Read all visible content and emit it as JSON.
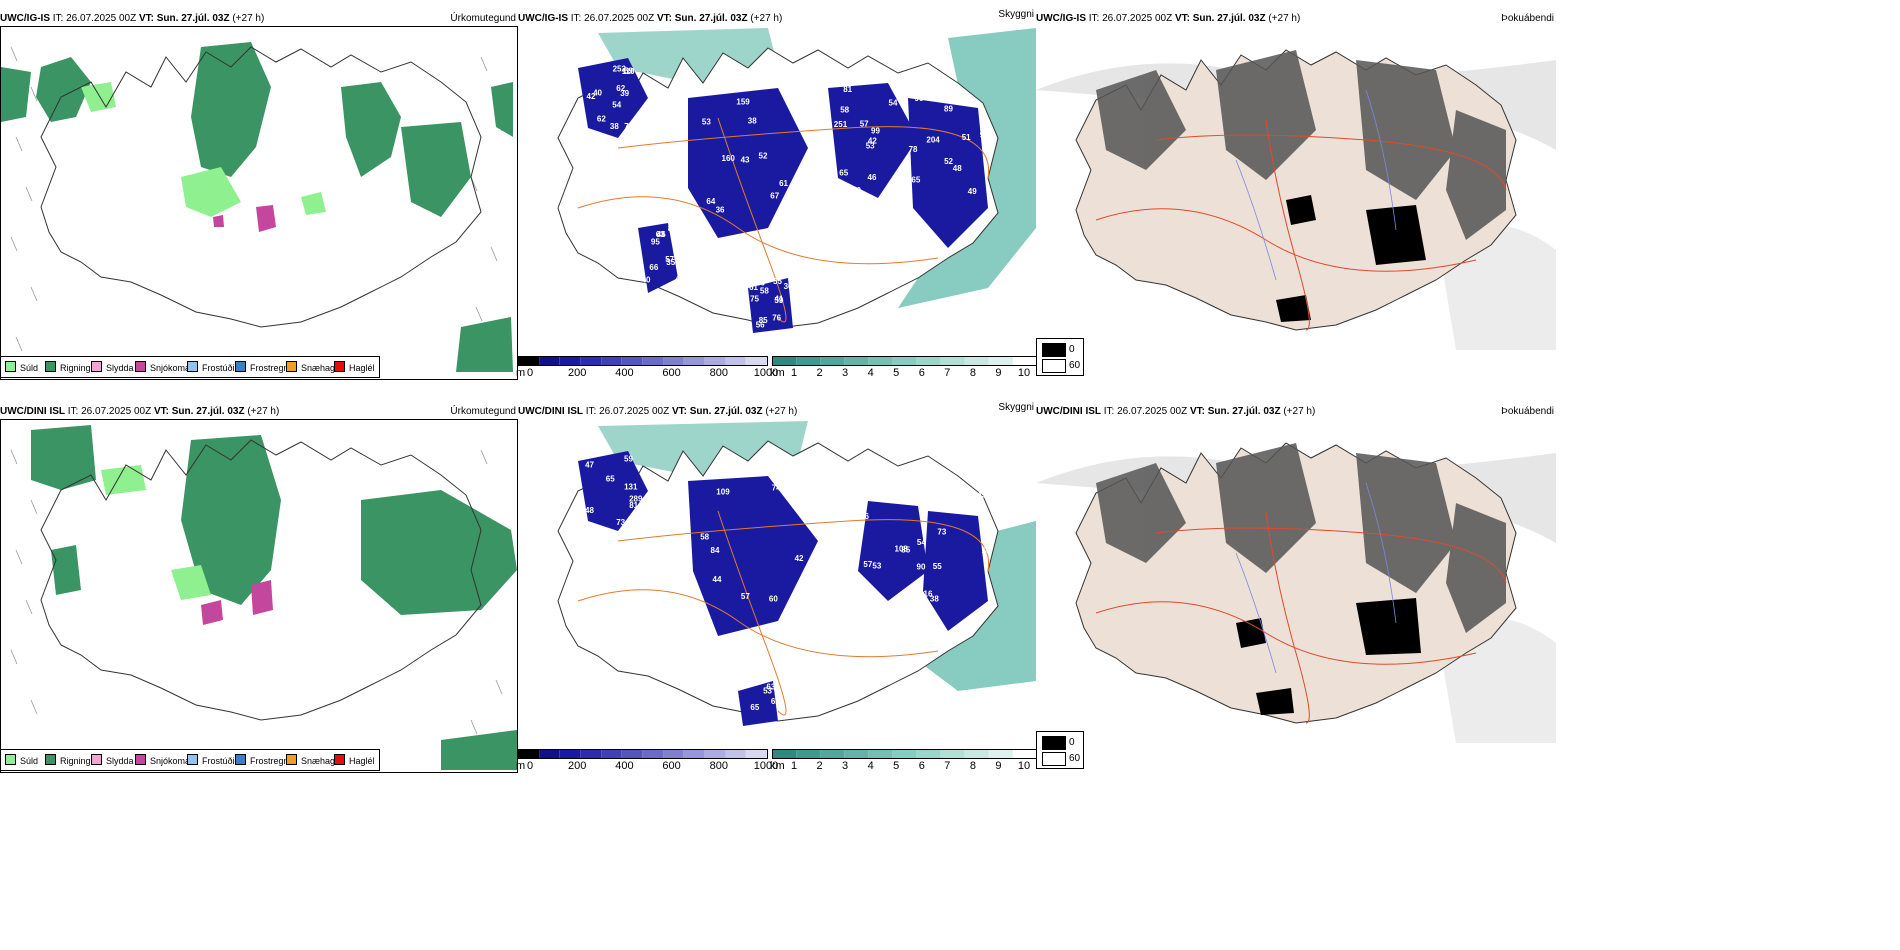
{
  "rows": [
    {
      "panels": [
        {
          "model": "UWC/IG-IS",
          "it_label": "IT:",
          "it_value": "26.07.2025 00Z",
          "vt_label": "VT:",
          "vt_value": "Sun. 27.júl. 03Z",
          "lead": "(+27 h)",
          "product": "Úrkomutegund"
        },
        {
          "model": "UWC/IG-IS",
          "it_label": "IT:",
          "it_value": "26.07.2025 00Z",
          "vt_label": "VT:",
          "vt_value": "Sun. 27.júl. 03Z",
          "lead": "(+27 h)",
          "product": "Skyggni",
          "labels": [
            "54",
            "53",
            "42",
            "52",
            "41",
            "66",
            "59",
            "38",
            "54",
            "48",
            "46",
            "45",
            "42",
            "49",
            "53",
            "51",
            "56",
            "63",
            "62",
            "64",
            "57",
            "48",
            "85",
            "46",
            "39",
            "61",
            "58",
            "89",
            "75",
            "57",
            "39",
            "43",
            "46",
            "52",
            "58",
            "89",
            "62",
            "66",
            "65",
            "49",
            "55",
            "95",
            "40",
            "67",
            "50",
            "78",
            "59",
            "40",
            "38",
            "52",
            "65",
            "94",
            "61",
            "35",
            "78",
            "36",
            "81",
            "90",
            "76",
            "40",
            "252",
            "160",
            "251",
            "204",
            "364",
            "484",
            "110",
            "159",
            "99"
          ]
        },
        {
          "model": "UWC/IG-IS",
          "it_label": "IT:",
          "it_value": "26.07.2025 00Z",
          "vt_label": "VT:",
          "vt_value": "Sun. 27.júl. 03Z",
          "lead": "(+27 h)",
          "product": "Þokuábendi"
        }
      ]
    },
    {
      "panels": [
        {
          "model": "UWC/DINI ISL",
          "it_label": "IT:",
          "it_value": "26.07.2025 00Z",
          "vt_label": "VT:",
          "vt_value": "Sun. 27.júl. 03Z",
          "lead": "(+27 h)",
          "product": "Úrkomutegund"
        },
        {
          "model": "UWC/DINI ISL",
          "it_label": "IT:",
          "it_value": "26.07.2025 00Z",
          "vt_label": "VT:",
          "vt_value": "Sun. 27.júl. 03Z",
          "lead": "(+27 h)",
          "product": "Skyggni",
          "labels": [
            "289",
            "42",
            "52",
            "50",
            "63",
            "72",
            "48",
            "74",
            "51",
            "40",
            "37",
            "37",
            "47",
            "54",
            "57",
            "50",
            "62",
            "47",
            "65",
            "44",
            "67",
            "49",
            "53",
            "74",
            "59",
            "109",
            "108",
            "90",
            "118",
            "65",
            "73",
            "60",
            "56",
            "55",
            "48",
            "51",
            "81",
            "84",
            "53",
            "116",
            "257",
            "66",
            "91",
            "57",
            "85",
            "38",
            "65",
            "56",
            "131",
            "58",
            "54",
            "73",
            "121",
            "48"
          ]
        },
        {
          "model": "UWC/DINI ISL",
          "it_label": "IT:",
          "it_value": "26.07.2025 00Z",
          "vt_label": "VT:",
          "vt_value": "Sun. 27.júl. 03Z",
          "lead": "(+27 h)",
          "product": "Þokuábendi"
        }
      ]
    }
  ],
  "precip_legend": [
    {
      "label": "Súld",
      "color": "#8ef08e"
    },
    {
      "label": "Rigning",
      "color": "#3a9463"
    },
    {
      "label": "Slydda",
      "color": "#f4a3d2"
    },
    {
      "label": "Snjókoma",
      "color": "#c4479e"
    },
    {
      "label": "Frostúði",
      "color": "#8fc4f0"
    },
    {
      "label": "Frostregn",
      "color": "#3a7ec4"
    },
    {
      "label": "Snæhagl",
      "color": "#f0a020"
    },
    {
      "label": "Haglél",
      "color": "#e01010"
    }
  ],
  "height_bar": {
    "unit": "m",
    "ticks": [
      "0",
      "200",
      "400",
      "600",
      "800",
      "1000"
    ],
    "colors": [
      "#000000",
      "#10108a",
      "#1a1aa0",
      "#2c2cb0",
      "#4040b8",
      "#5555c0",
      "#6a6ac8",
      "#8080d0",
      "#9696d8",
      "#acacdf",
      "#c2c2e8",
      "#d8d8f0"
    ]
  },
  "vis_bar": {
    "unit": "km",
    "ticks": [
      "1",
      "2",
      "3",
      "4",
      "5",
      "6",
      "7",
      "8",
      "9",
      "10"
    ],
    "colors": [
      "#2e8a80",
      "#3d9a8e",
      "#4fa89b",
      "#62b4a8",
      "#75c0b4",
      "#88cbc0",
      "#9dd5cb",
      "#b2dfd6",
      "#c8e9e2",
      "#ddf2ee",
      "#ffffff"
    ]
  },
  "fog_legend": [
    {
      "label": "0",
      "color": "#000000"
    },
    {
      "label": "60",
      "color": "#ffffff"
    }
  ]
}
